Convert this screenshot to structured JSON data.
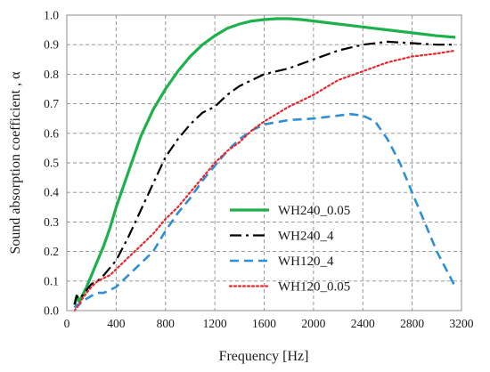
{
  "chart_data": {
    "type": "line",
    "title": "",
    "xlabel": "Frequency [Hz]",
    "ylabel": "Sound absorption coefficient , α",
    "xlim": [
      0,
      3200
    ],
    "ylim": [
      0,
      1.0
    ],
    "xticks": [
      0,
      400,
      800,
      1200,
      1600,
      2000,
      2400,
      2800,
      3200
    ],
    "yticks": [
      0.0,
      0.1,
      0.2,
      0.3,
      0.4,
      0.5,
      0.6,
      0.7,
      0.8,
      0.9,
      1.0
    ],
    "xtick_labels": [
      "0",
      "400",
      "800",
      "1200",
      "1600",
      "2000",
      "2400",
      "2800",
      "3200"
    ],
    "ytick_labels": [
      "0.0",
      "0.1",
      "0.2",
      "0.3",
      "0.4",
      "0.5",
      "0.6",
      "0.7",
      "0.8",
      "0.9",
      "1.0"
    ],
    "grid": true,
    "legend_position": "center-right",
    "series": [
      {
        "name": "WH240_0.05",
        "color": "#1db14b",
        "style": "solid",
        "points": [
          [
            63,
            0.02
          ],
          [
            80,
            0.05
          ],
          [
            100,
            0.03
          ],
          [
            125,
            0.05
          ],
          [
            160,
            0.08
          ],
          [
            200,
            0.12
          ],
          [
            250,
            0.17
          ],
          [
            300,
            0.22
          ],
          [
            350,
            0.28
          ],
          [
            400,
            0.35
          ],
          [
            500,
            0.47
          ],
          [
            600,
            0.59
          ],
          [
            700,
            0.68
          ],
          [
            800,
            0.75
          ],
          [
            900,
            0.81
          ],
          [
            1000,
            0.86
          ],
          [
            1100,
            0.9
          ],
          [
            1200,
            0.93
          ],
          [
            1300,
            0.955
          ],
          [
            1400,
            0.97
          ],
          [
            1500,
            0.98
          ],
          [
            1600,
            0.985
          ],
          [
            1700,
            0.988
          ],
          [
            1800,
            0.988
          ],
          [
            1900,
            0.985
          ],
          [
            2000,
            0.98
          ],
          [
            2200,
            0.97
          ],
          [
            2400,
            0.96
          ],
          [
            2600,
            0.95
          ],
          [
            2800,
            0.94
          ],
          [
            3000,
            0.93
          ],
          [
            3150,
            0.925
          ]
        ]
      },
      {
        "name": "WH240_4",
        "color": "#000000",
        "style": "dashdot",
        "points": [
          [
            63,
            0.02
          ],
          [
            80,
            0.05
          ],
          [
            100,
            0.04
          ],
          [
            125,
            0.05
          ],
          [
            160,
            0.07
          ],
          [
            200,
            0.09
          ],
          [
            250,
            0.1
          ],
          [
            300,
            0.12
          ],
          [
            400,
            0.17
          ],
          [
            500,
            0.25
          ],
          [
            600,
            0.34
          ],
          [
            700,
            0.43
          ],
          [
            800,
            0.52
          ],
          [
            900,
            0.58
          ],
          [
            1000,
            0.63
          ],
          [
            1100,
            0.67
          ],
          [
            1200,
            0.69
          ],
          [
            1300,
            0.73
          ],
          [
            1400,
            0.76
          ],
          [
            1500,
            0.78
          ],
          [
            1600,
            0.8
          ],
          [
            1800,
            0.82
          ],
          [
            2000,
            0.85
          ],
          [
            2200,
            0.88
          ],
          [
            2400,
            0.9
          ],
          [
            2600,
            0.91
          ],
          [
            2800,
            0.905
          ],
          [
            3000,
            0.9
          ],
          [
            3150,
            0.9
          ]
        ]
      },
      {
        "name": "WH120_4",
        "color": "#2e8fd3",
        "style": "dashed",
        "points": [
          [
            63,
            0.01
          ],
          [
            80,
            0.02
          ],
          [
            100,
            0.02
          ],
          [
            125,
            0.03
          ],
          [
            160,
            0.04
          ],
          [
            200,
            0.05
          ],
          [
            250,
            0.06
          ],
          [
            300,
            0.06
          ],
          [
            350,
            0.07
          ],
          [
            400,
            0.08
          ],
          [
            500,
            0.12
          ],
          [
            600,
            0.16
          ],
          [
            700,
            0.2
          ],
          [
            800,
            0.27
          ],
          [
            900,
            0.33
          ],
          [
            1000,
            0.38
          ],
          [
            1100,
            0.44
          ],
          [
            1200,
            0.49
          ],
          [
            1300,
            0.54
          ],
          [
            1400,
            0.58
          ],
          [
            1500,
            0.61
          ],
          [
            1600,
            0.63
          ],
          [
            1800,
            0.645
          ],
          [
            2000,
            0.65
          ],
          [
            2200,
            0.66
          ],
          [
            2300,
            0.665
          ],
          [
            2400,
            0.66
          ],
          [
            2500,
            0.64
          ],
          [
            2600,
            0.58
          ],
          [
            2700,
            0.5
          ],
          [
            2800,
            0.4
          ],
          [
            2900,
            0.3
          ],
          [
            3000,
            0.2
          ],
          [
            3100,
            0.12
          ],
          [
            3150,
            0.08
          ]
        ]
      },
      {
        "name": "WH120_0.05",
        "color": "#e8262b",
        "style": "dotted",
        "points": [
          [
            63,
            0.0
          ],
          [
            80,
            0.01
          ],
          [
            100,
            0.02
          ],
          [
            125,
            0.04
          ],
          [
            160,
            0.06
          ],
          [
            200,
            0.08
          ],
          [
            250,
            0.1
          ],
          [
            300,
            0.11
          ],
          [
            350,
            0.12
          ],
          [
            400,
            0.14
          ],
          [
            500,
            0.18
          ],
          [
            600,
            0.22
          ],
          [
            700,
            0.26
          ],
          [
            800,
            0.31
          ],
          [
            900,
            0.35
          ],
          [
            1000,
            0.4
          ],
          [
            1100,
            0.45
          ],
          [
            1200,
            0.5
          ],
          [
            1300,
            0.54
          ],
          [
            1400,
            0.57
          ],
          [
            1500,
            0.61
          ],
          [
            1600,
            0.64
          ],
          [
            1800,
            0.69
          ],
          [
            2000,
            0.73
          ],
          [
            2200,
            0.78
          ],
          [
            2400,
            0.81
          ],
          [
            2600,
            0.84
          ],
          [
            2800,
            0.86
          ],
          [
            3000,
            0.87
          ],
          [
            3150,
            0.88
          ]
        ]
      }
    ]
  }
}
